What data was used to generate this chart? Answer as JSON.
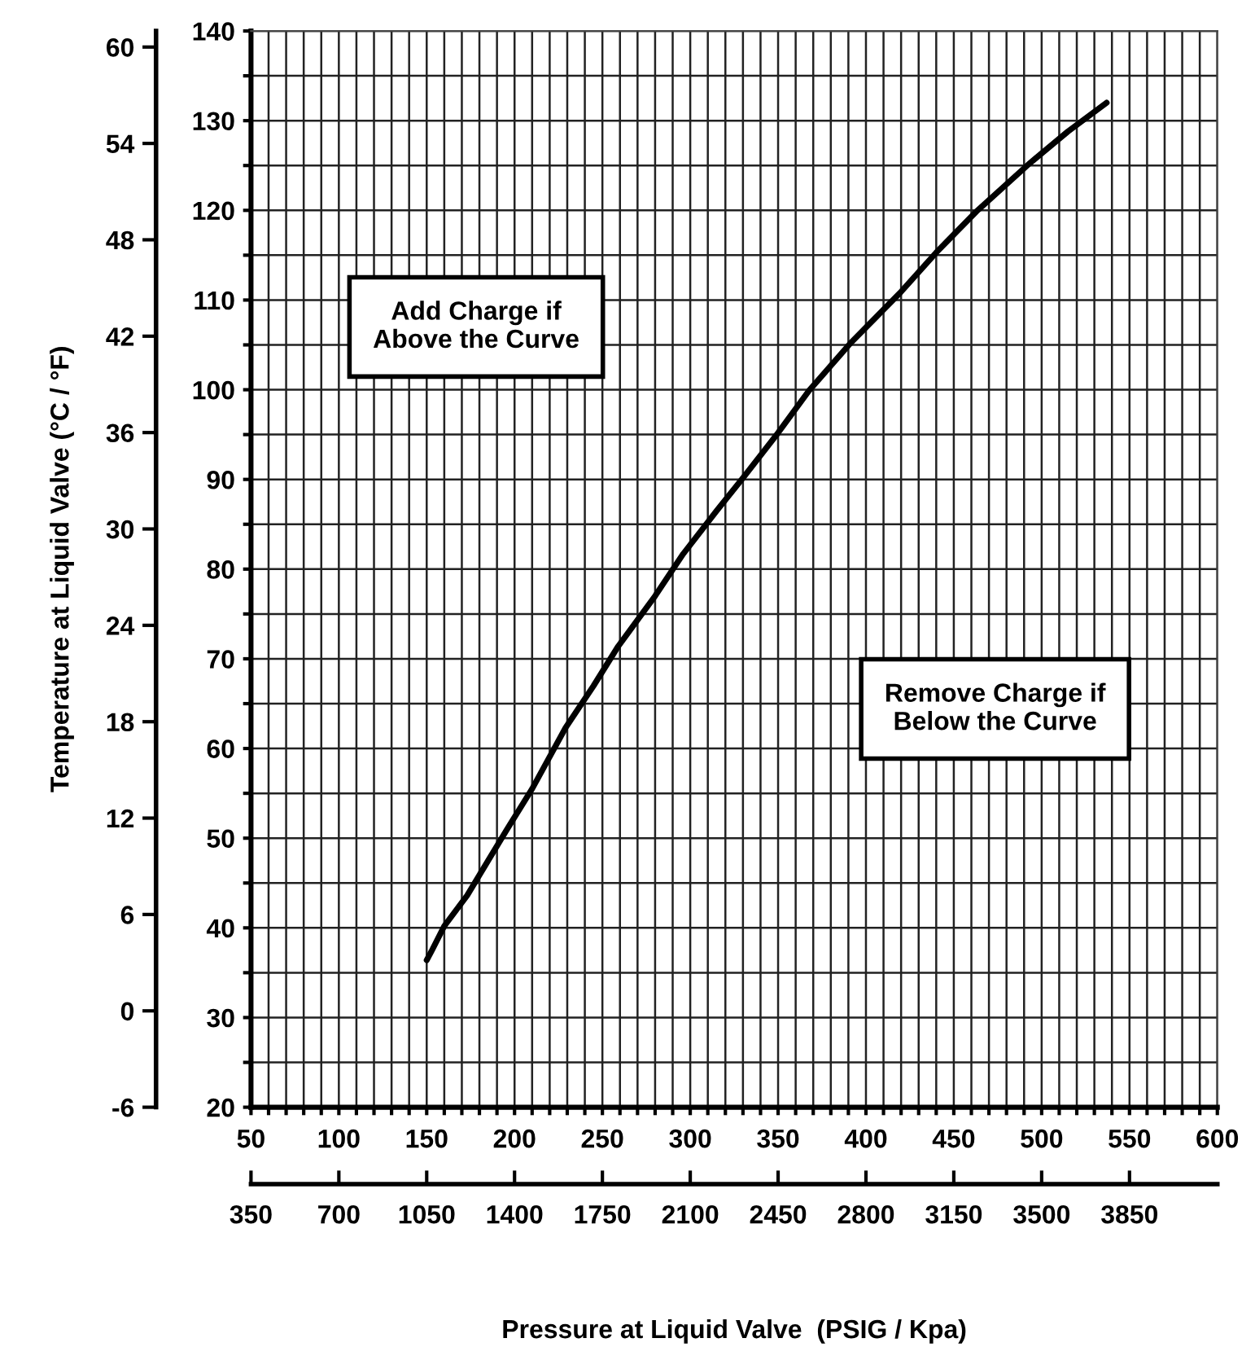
{
  "chart_data": {
    "type": "line",
    "xlabel": "Pressure at Liquid Valve  (PSIG / Kpa)",
    "y2label": "Temperature at Liquid Valve (°C / °F)",
    "series": [
      {
        "color": "#000000",
        "x": [
          150,
          153,
          160,
          173,
          185,
          197,
          210,
          229,
          245,
          259,
          280,
          296,
          315,
          330.5,
          350,
          367.6,
          391.7,
          419.4,
          440,
          463,
          493.5,
          515,
          537
        ],
        "values": [
          36.4,
          37.5,
          40.2,
          43.6,
          47.5,
          51.4,
          55.5,
          62.3,
          67,
          71.4,
          77,
          81.7,
          86.5,
          90.3,
          95.2,
          99.9,
          105.3,
          110.8,
          115.3,
          119.9,
          125.3,
          128.8,
          132
        ]
      }
    ],
    "xlim": [
      50,
      600
    ],
    "ylim": [
      20,
      140
    ],
    "xticks": [
      50,
      {
        "value": 60,
        "label": null
      },
      {
        "value": 70,
        "label": null
      },
      {
        "value": 80,
        "label": null
      },
      {
        "value": 90,
        "label": null
      },
      100,
      {
        "value": 110,
        "label": null
      },
      {
        "value": 120,
        "label": null
      },
      {
        "value": 130,
        "label": null
      },
      {
        "value": 140,
        "label": null
      },
      150,
      {
        "value": 160,
        "label": null
      },
      {
        "value": 170,
        "label": null
      },
      {
        "value": 180,
        "label": null
      },
      {
        "value": 190,
        "label": null
      },
      200,
      {
        "value": 210,
        "label": null
      },
      {
        "value": 220,
        "label": null
      },
      {
        "value": 230,
        "label": null
      },
      {
        "value": 240,
        "label": null
      },
      250,
      {
        "value": 260,
        "label": null
      },
      {
        "value": 270,
        "label": null
      },
      {
        "value": 280,
        "label": null
      },
      {
        "value": 290,
        "label": null
      },
      300,
      {
        "value": 310,
        "label": null
      },
      {
        "value": 320,
        "label": null
      },
      {
        "value": 330,
        "label": null
      },
      {
        "value": 340,
        "label": null
      },
      350,
      {
        "value": 360,
        "label": null
      },
      {
        "value": 370,
        "label": null
      },
      {
        "value": 380,
        "label": null
      },
      {
        "value": 390,
        "label": null
      },
      400,
      {
        "value": 410,
        "label": null
      },
      {
        "value": 420,
        "label": null
      },
      {
        "value": 430,
        "label": null
      },
      {
        "value": 440,
        "label": null
      },
      450,
      {
        "value": 460,
        "label": null
      },
      {
        "value": 470,
        "label": null
      },
      {
        "value": 480,
        "label": null
      },
      {
        "value": 490,
        "label": null
      },
      500,
      {
        "value": 510,
        "label": null
      },
      {
        "value": 520,
        "label": null
      },
      {
        "value": 530,
        "label": null
      },
      {
        "value": 540,
        "label": null
      },
      550,
      {
        "value": 560,
        "label": null
      },
      {
        "value": 570,
        "label": null
      },
      {
        "value": 580,
        "label": null
      },
      {
        "value": 590,
        "label": null
      },
      600
    ],
    "yticks": [
      20,
      {
        "value": 25,
        "label": null
      },
      30,
      {
        "value": 35,
        "label": null
      },
      40,
      {
        "value": 45,
        "label": null
      },
      50,
      {
        "value": 55,
        "label": null
      },
      60,
      {
        "value": 65,
        "label": null
      },
      70,
      {
        "value": 75,
        "label": null
      },
      80,
      {
        "value": 85,
        "label": null
      },
      90,
      {
        "value": 95,
        "label": null
      },
      100,
      {
        "value": 105,
        "label": null
      },
      110,
      {
        "value": 115,
        "label": null
      },
      120,
      {
        "value": 125,
        "label": null
      },
      130,
      {
        "value": 135,
        "label": null
      },
      140
    ],
    "x2lim": [
      350,
      4200
    ],
    "x2ticks": [
      350,
      700,
      1050,
      1400,
      1750,
      2100,
      2450,
      2800,
      3150,
      3500,
      3850
    ],
    "y2lim": [
      -6,
      61
    ],
    "y2ticks": [
      -6,
      0,
      6,
      12,
      18,
      24,
      30,
      36,
      42,
      48,
      54,
      60
    ],
    "grid": true,
    "marker": "none",
    "line_style": "solid",
    "annotations": [
      "Add Charge if\nAbove the Curve",
      "Remove Charge if\nBelow the Curve"
    ]
  }
}
